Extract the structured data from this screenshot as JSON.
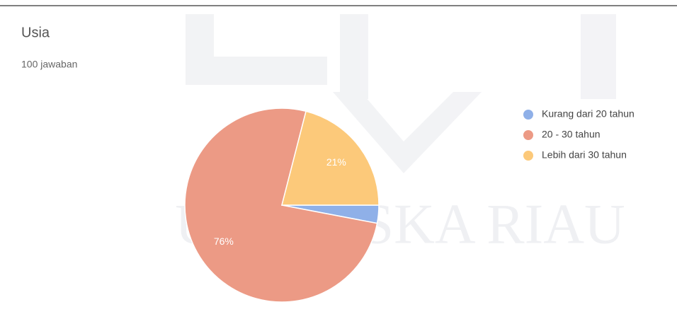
{
  "chart_data": {
    "type": "pie",
    "title": "Usia",
    "subtitle": "100 jawaban",
    "watermark": "UIN SUSKA RIAU",
    "categories": [
      "Kurang dari 20 tahun",
      "20 - 30 tahun",
      "Lebih dari 30 tahun"
    ],
    "values": [
      3,
      76,
      21
    ],
    "value_labels": [
      null,
      "76%",
      "21%"
    ],
    "colors": [
      "#8fb0e8",
      "#ec9a85",
      "#fcc97a"
    ],
    "legend": "right"
  }
}
